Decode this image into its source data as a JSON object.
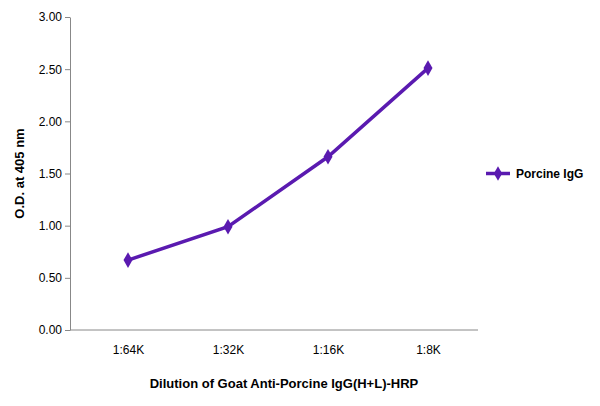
{
  "chart_data": {
    "type": "line",
    "x_label": "Dilution of Goat Anti-Porcine IgG(H+L)-HRP",
    "y_label": "O.D. at 405 nm",
    "categories": [
      "1:64K",
      "1:32K",
      "1:16K",
      "1:8K"
    ],
    "series": [
      {
        "name": "Porcine IgG",
        "color": "#5a1ab0",
        "marker": "diamond",
        "values": [
          0.67,
          0.99,
          1.66,
          2.51
        ]
      }
    ],
    "ylim": [
      0,
      3
    ],
    "yticks": [
      {
        "value": 0,
        "label": "0.00"
      },
      {
        "value": 0.5,
        "label": "0.50"
      },
      {
        "value": 1,
        "label": "1.00"
      },
      {
        "value": 1.5,
        "label": "1.50"
      },
      {
        "value": 2,
        "label": "2.00"
      },
      {
        "value": 2.5,
        "label": "2.50"
      },
      {
        "value": 3,
        "label": "3.00"
      }
    ],
    "grid": false,
    "legend": "right"
  }
}
